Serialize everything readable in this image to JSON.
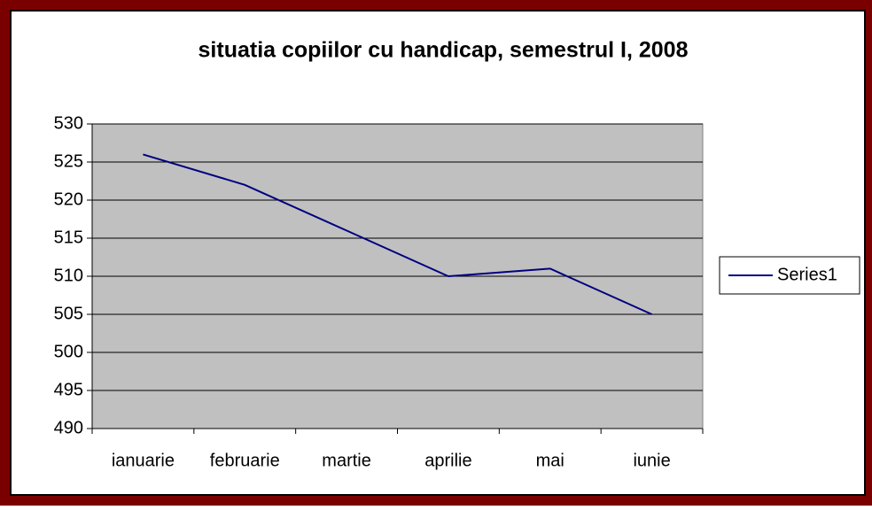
{
  "chart_data": {
    "type": "line",
    "title": "situatia copiilor cu handicap, semestrul I, 2008",
    "categories": [
      "ianuarie",
      "februarie",
      "martie",
      "aprilie",
      "mai",
      "iunie"
    ],
    "series": [
      {
        "name": "Series1",
        "color": "#000080",
        "values": [
          526,
          522,
          516,
          510,
          511,
          505
        ]
      }
    ],
    "ylim": [
      490,
      530
    ],
    "yticks": [
      490,
      495,
      500,
      505,
      510,
      515,
      520,
      525,
      530
    ],
    "grid": true,
    "legend": "right"
  }
}
